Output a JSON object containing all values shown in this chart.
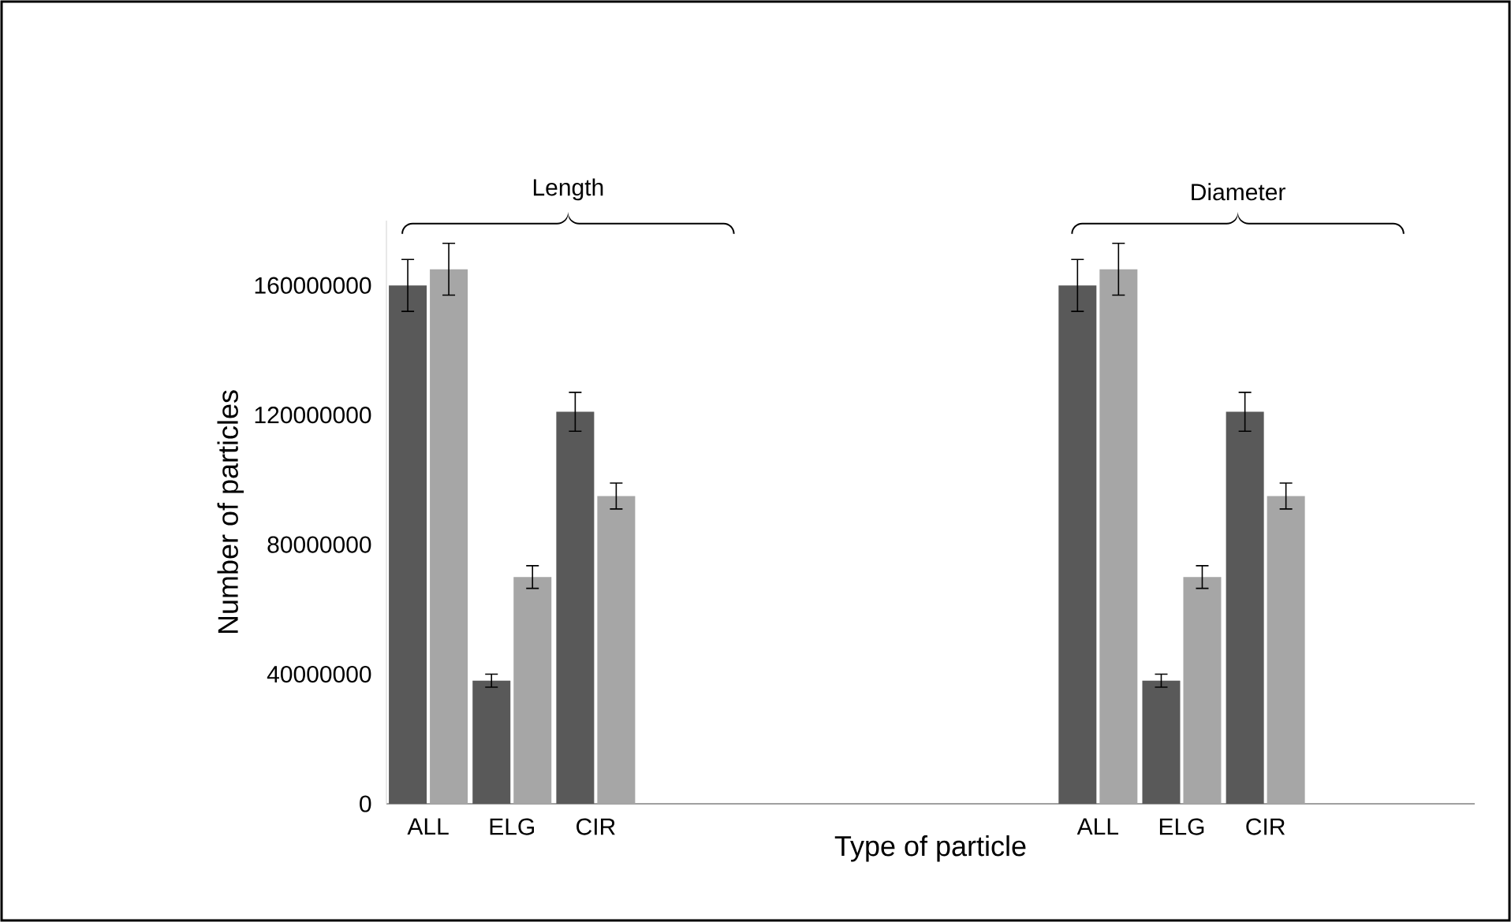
{
  "chart_data": {
    "type": "bar",
    "xlabel": "Type of particle",
    "ylabel": "Number of particles",
    "categories": [
      "ALL",
      "ELG",
      "CIR",
      null,
      null,
      null,
      null,
      null,
      "ALL",
      "ELG",
      "CIR",
      null,
      null
    ],
    "series": [
      {
        "color": "#595959",
        "values": [
          160000000,
          38000000,
          121000000,
          null,
          null,
          null,
          null,
          null,
          160000000,
          38000000,
          121000000,
          null,
          null
        ],
        "errors": [
          8000000,
          2000000,
          6000000,
          null,
          null,
          null,
          null,
          null,
          8000000,
          2000000,
          6000000,
          null,
          null
        ]
      },
      {
        "color": "#a6a6a6",
        "values": [
          165000000,
          70000000,
          95000000,
          null,
          null,
          null,
          null,
          null,
          165000000,
          70000000,
          95000000,
          null,
          null
        ],
        "errors": [
          8000000,
          3500000,
          4000000,
          null,
          null,
          null,
          null,
          null,
          8000000,
          3500000,
          4000000,
          null,
          null
        ]
      }
    ],
    "ylim": [
      0,
      180000000
    ],
    "yticks": [
      0,
      40000000,
      80000000,
      120000000,
      160000000
    ],
    "annotations": [
      "Length",
      "Diameter"
    ]
  }
}
